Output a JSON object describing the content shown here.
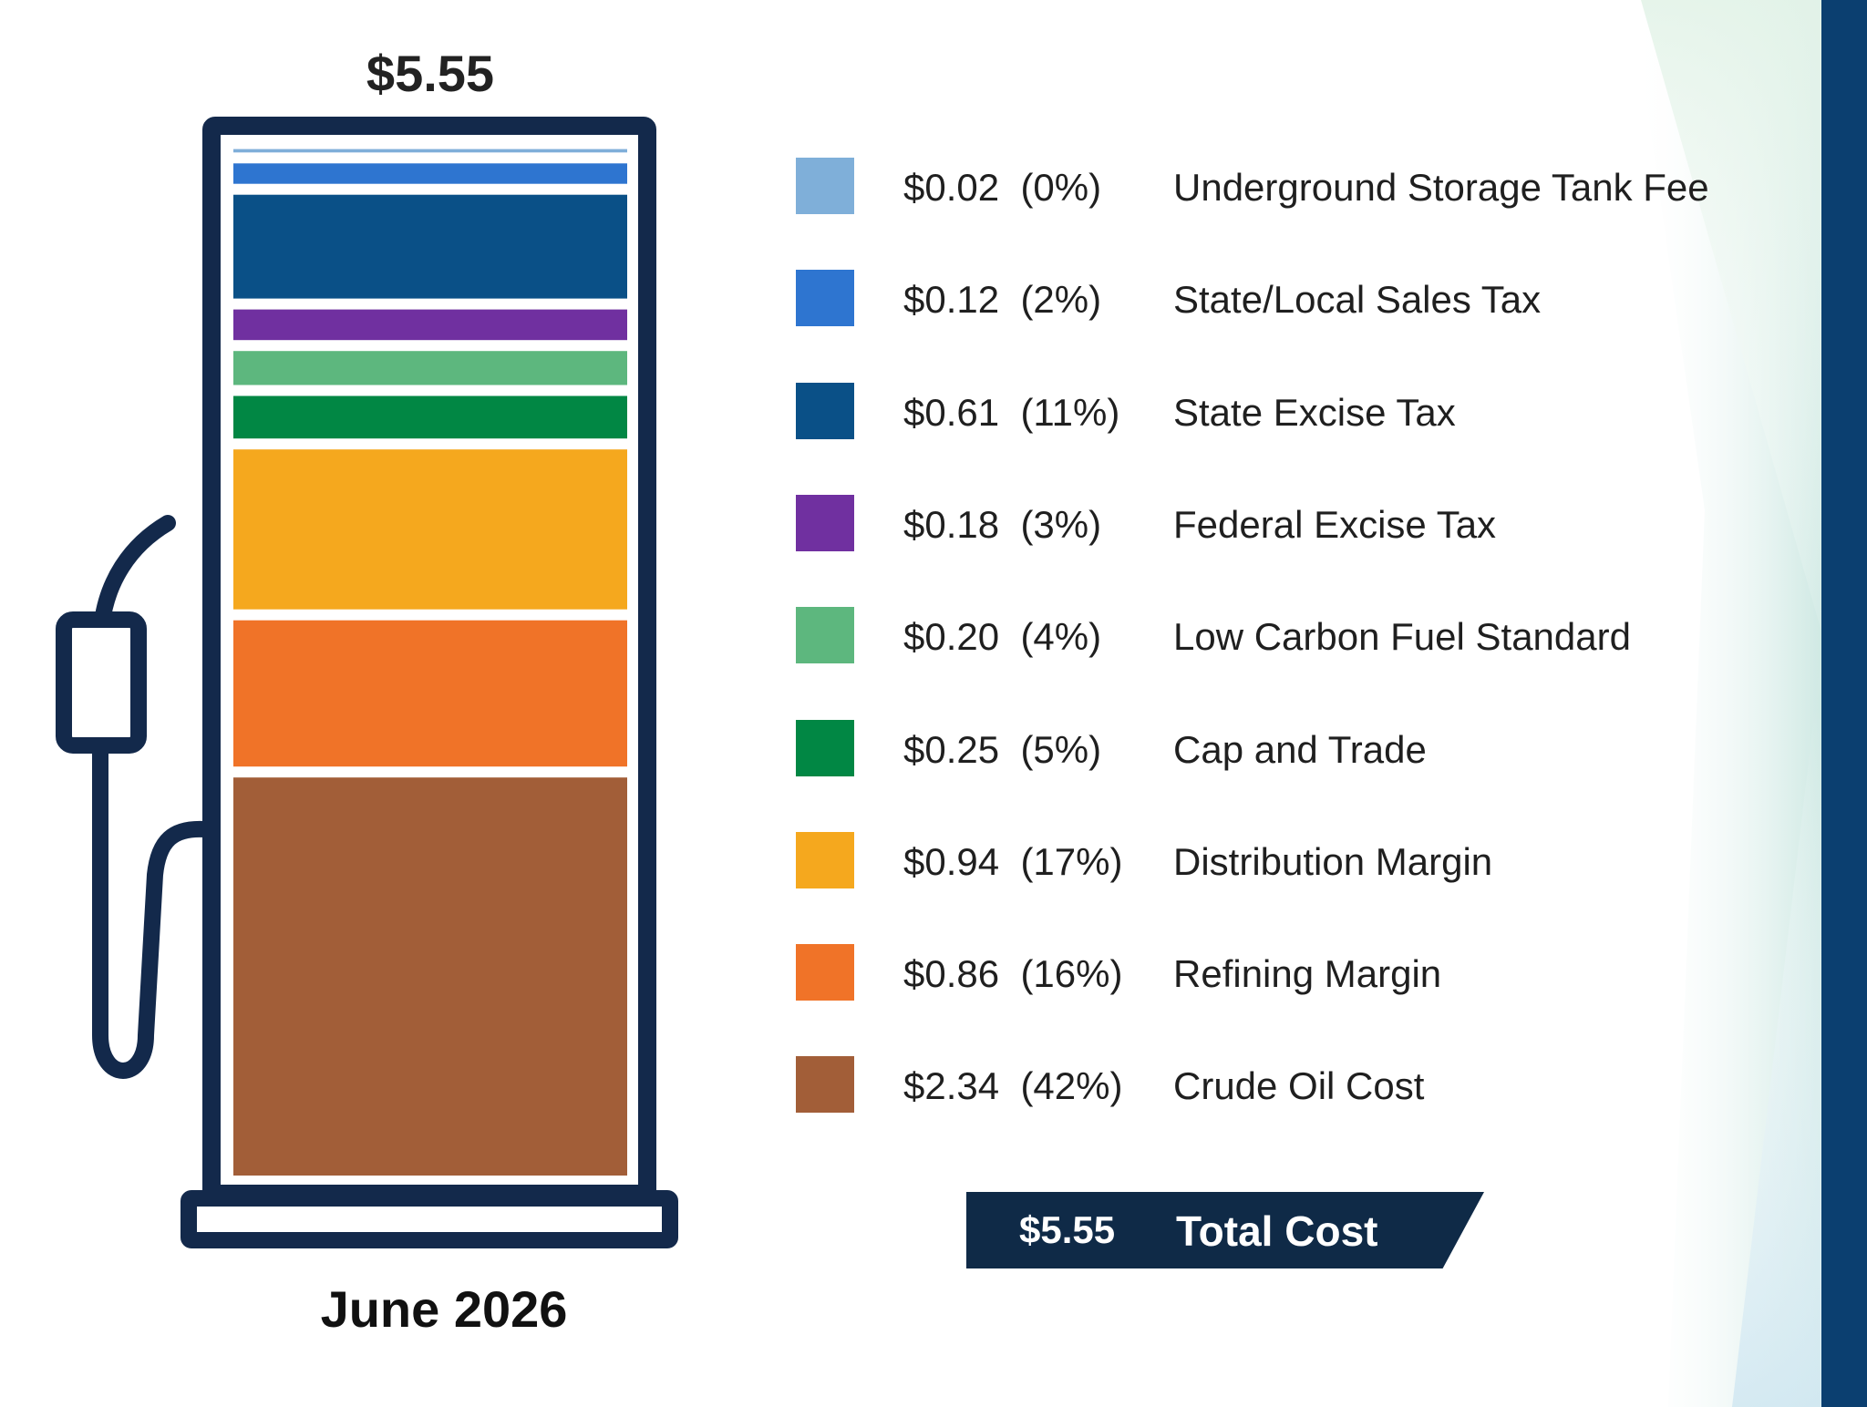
{
  "chart_data": {
    "type": "bar",
    "layout": "single stacked column drawn inside a gas pump outline",
    "title": "$5.55",
    "xlabel": "June 2026",
    "total": 5.55,
    "total_text": "$5.55",
    "categories": [
      "June 2026"
    ],
    "series": [
      {
        "name": "Crude Oil Cost",
        "value": 2.34,
        "percent": 42,
        "value_text": "$2.34",
        "percent_text": "(42%)",
        "color": "#a25e38"
      },
      {
        "name": "Refining Margin",
        "value": 0.86,
        "percent": 16,
        "value_text": "$0.86",
        "percent_text": "(16%)",
        "color": "#f07328"
      },
      {
        "name": "Distribution Margin",
        "value": 0.94,
        "percent": 17,
        "value_text": "$0.94",
        "percent_text": "(17%)",
        "color": "#f5a81e"
      },
      {
        "name": "Cap and Trade",
        "value": 0.25,
        "percent": 5,
        "value_text": "$0.25",
        "percent_text": "(5%)",
        "color": "#018744"
      },
      {
        "name": "Low Carbon Fuel Standard",
        "value": 0.2,
        "percent": 4,
        "value_text": "$0.20",
        "percent_text": "(4%)",
        "color": "#5db77e"
      },
      {
        "name": "Federal Excise Tax",
        "value": 0.18,
        "percent": 3,
        "value_text": "$0.18",
        "percent_text": "(3%)",
        "color": "#7030a0"
      },
      {
        "name": "State Excise Tax",
        "value": 0.61,
        "percent": 11,
        "value_text": "$0.61",
        "percent_text": "(11%)",
        "color": "#0a5087"
      },
      {
        "name": "State/Local Sales Tax",
        "value": 0.12,
        "percent": 2,
        "value_text": "$0.12",
        "percent_text": "(2%)",
        "color": "#2e75d0"
      },
      {
        "name": "Underground Storage Tank Fee",
        "value": 0.02,
        "percent": 0,
        "value_text": "$0.02",
        "percent_text": "(0%)",
        "color": "#7fafd9"
      }
    ],
    "legend_position": "right",
    "legend_order": "top-to-bottom matches stack top-to-bottom",
    "grid": false
  },
  "total_banner": {
    "value": "$5.55",
    "label": "Total Cost",
    "color": "#0f2a47"
  },
  "colors": {
    "pump_outline": "#13294b",
    "right_accent": "#0b3f70",
    "background_gradient": [
      "#ffffff",
      "#d8eef0",
      "#cfe6d9"
    ]
  }
}
